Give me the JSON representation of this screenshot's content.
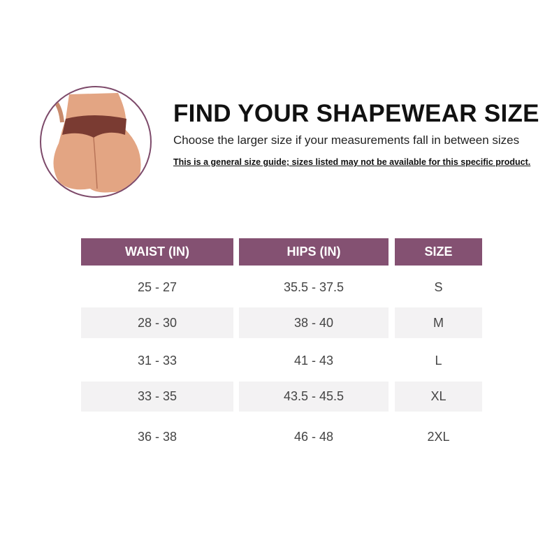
{
  "header": {
    "title": "FIND YOUR SHAPEWEAR SIZE",
    "subtitle": "Choose the larger size if your measurements fall in between sizes",
    "note": "This is a general size guide; sizes listed may not be available for this specific product."
  },
  "image": {
    "icon": "shapewear-model-photo",
    "border_color": "#7d4a6a"
  },
  "table": {
    "header_color": "#845172",
    "columns": [
      "WAIST (IN)",
      "HIPS (IN)",
      "SIZE"
    ],
    "rows": [
      [
        "25 - 27",
        "35.5 - 37.5",
        "S"
      ],
      [
        "28 - 30",
        "38 - 40",
        "M"
      ],
      [
        "31 - 33",
        "41 - 43",
        "L"
      ],
      [
        "33 - 35",
        "43.5 - 45.5",
        "XL"
      ],
      [
        "36 - 38",
        "46 - 48",
        "2XL"
      ]
    ]
  }
}
